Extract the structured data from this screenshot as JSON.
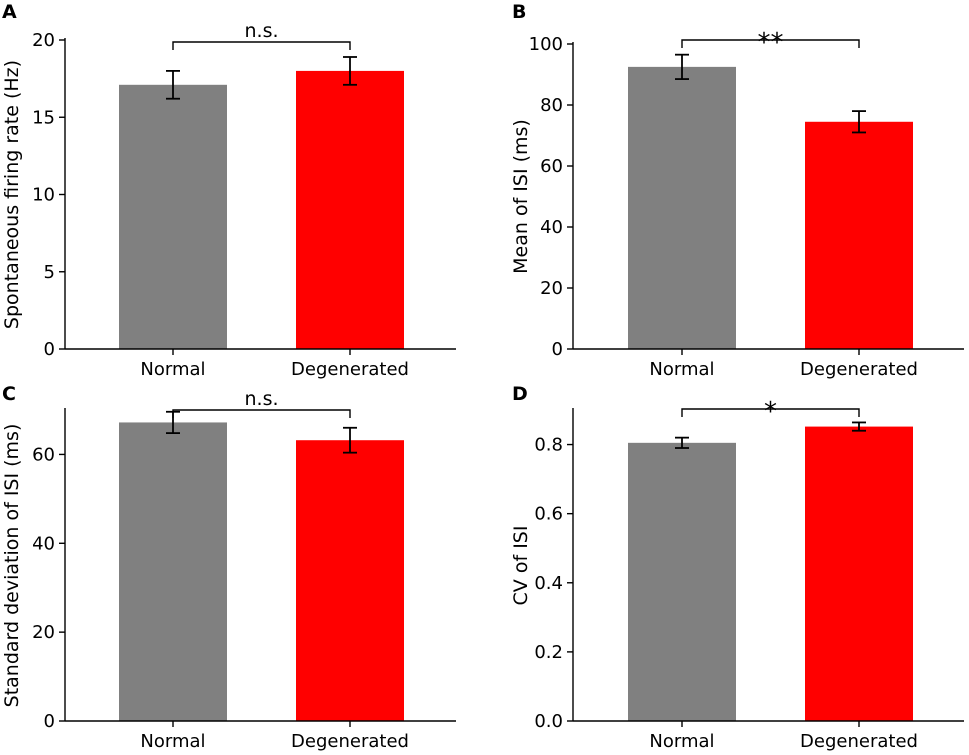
{
  "chart_data": [
    {
      "panel": "A",
      "type": "bar",
      "categories": [
        "Normal",
        "Degenerated"
      ],
      "values": [
        17.1,
        18.0
      ],
      "errors": [
        0.9,
        0.9
      ],
      "colors": [
        "#808080",
        "#ff0000"
      ],
      "xlabel": "",
      "ylabel": "Spontaneous firing rate (Hz)",
      "ylim": [
        0,
        20
      ],
      "yticks": [
        0,
        5,
        10,
        15,
        20
      ],
      "significance": "n.s.",
      "grid": false
    },
    {
      "panel": "B",
      "type": "bar",
      "categories": [
        "Normal",
        "Degenerated"
      ],
      "values": [
        92.5,
        74.5
      ],
      "errors": [
        4.0,
        3.5
      ],
      "colors": [
        "#808080",
        "#ff0000"
      ],
      "xlabel": "",
      "ylabel": "Mean of ISI (ms)",
      "ylim": [
        0,
        100
      ],
      "yticks": [
        0,
        20,
        40,
        60,
        80,
        100
      ],
      "significance": "**",
      "grid": false
    },
    {
      "panel": "C",
      "type": "bar",
      "categories": [
        "Normal",
        "Degenerated"
      ],
      "values": [
        67.2,
        63.2
      ],
      "errors": [
        2.4,
        2.8
      ],
      "colors": [
        "#808080",
        "#ff0000"
      ],
      "xlabel": "",
      "ylabel": "Standard deviation of ISI (ms)",
      "ylim": [
        0,
        70
      ],
      "yticks": [
        0,
        20,
        40,
        60
      ],
      "significance": "n.s.",
      "grid": false
    },
    {
      "panel": "D",
      "type": "bar",
      "categories": [
        "Normal",
        "Degenerated"
      ],
      "values": [
        0.805,
        0.852
      ],
      "errors": [
        0.015,
        0.012
      ],
      "colors": [
        "#808080",
        "#ff0000"
      ],
      "xlabel": "",
      "ylabel": "CV of ISI",
      "ylim": [
        0,
        0.9
      ],
      "yticks": [
        0.0,
        0.2,
        0.4,
        0.6,
        0.8
      ],
      "significance": "*",
      "grid": false
    }
  ]
}
